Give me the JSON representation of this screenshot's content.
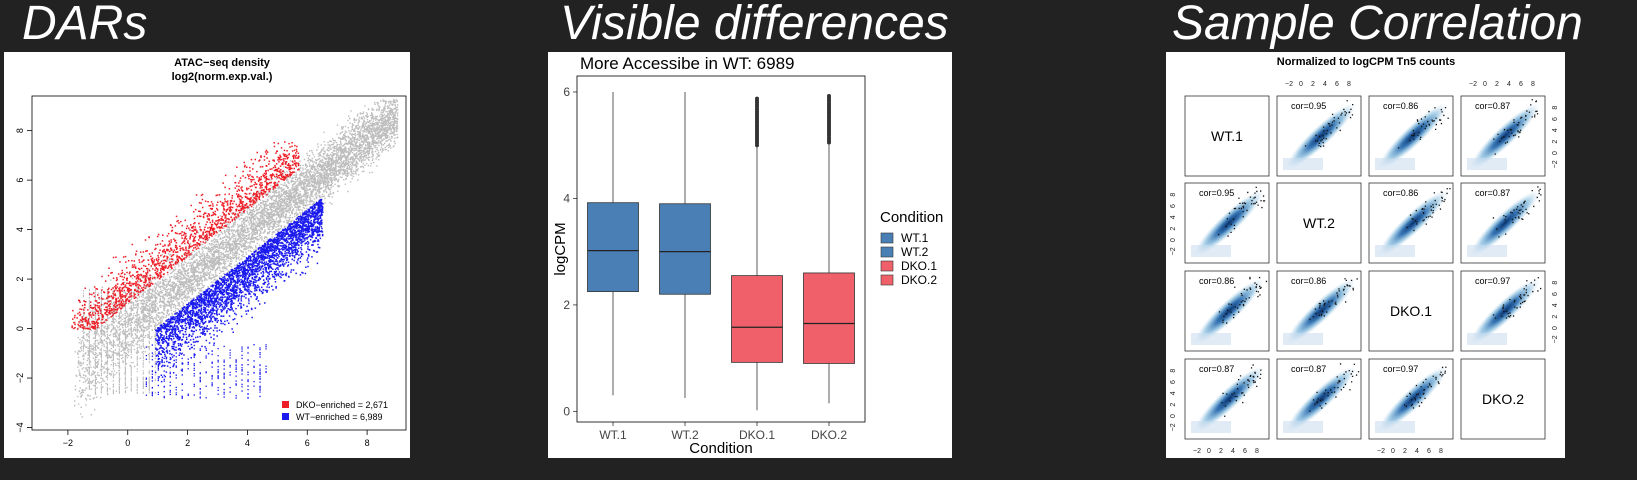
{
  "headings": {
    "left": "DARs",
    "middle": "Visible differences",
    "right": "Sample Correlation"
  },
  "colors": {
    "background": "#222222",
    "dko_enriched": "#ee1c25",
    "wt_enriched": "#1a1aee",
    "neutral": "#bdbdbd",
    "wt_box": "#4a7fb5",
    "dko_box": "#f0606a",
    "corr_blue": "#2166ac"
  },
  "chart_data": [
    {
      "type": "scatter",
      "title": "ATAC−seq density",
      "subtitle": "log2(norm.exp.val.)",
      "xlabel": "",
      "ylabel": "",
      "xlim": [
        -3.2,
        9.3
      ],
      "ylim": [
        -4.1,
        9.4
      ],
      "xticks": [
        "−2",
        "0",
        "2",
        "4",
        "6",
        "8"
      ],
      "yticks": [
        "−4",
        "−2",
        "0",
        "2",
        "4",
        "6",
        "8"
      ],
      "legend_position": "bottom-right",
      "series": [
        {
          "name": "DKO−enriched = 2,671",
          "color": "#ee1c25"
        },
        {
          "name": "WT−enriched = 6,989",
          "color": "#1a1aee"
        }
      ]
    },
    {
      "type": "box",
      "title": "More Accessibe in WT: 6989",
      "xlabel": "Condition",
      "ylabel": "logCPM",
      "ylim": [
        -0.2,
        6.3
      ],
      "yticks": [
        "0",
        "2",
        "4",
        "6"
      ],
      "categories": [
        "WT.1",
        "WT.2",
        "DKO.1",
        "DKO.2"
      ],
      "boxes": [
        {
          "name": "WT.1",
          "min": 0.3,
          "q1": 2.25,
          "median": 3.02,
          "q3": 3.92,
          "max": 6.0,
          "color": "#4a7fb5"
        },
        {
          "name": "WT.2",
          "min": 0.25,
          "q1": 2.2,
          "median": 3.0,
          "q3": 3.9,
          "max": 6.0,
          "color": "#4a7fb5"
        },
        {
          "name": "DKO.1",
          "min": 0.02,
          "q1": 0.92,
          "median": 1.58,
          "q3": 2.55,
          "max": 5.0,
          "outlier_top": 5.9,
          "color": "#f0606a"
        },
        {
          "name": "DKO.2",
          "min": 0.15,
          "q1": 0.9,
          "median": 1.65,
          "q3": 2.6,
          "max": 5.05,
          "outlier_top": 5.95,
          "color": "#f0606a"
        }
      ],
      "legend_title": "Condition",
      "legend_position": "right"
    },
    {
      "type": "scatter-matrix",
      "title": "Normalized to logCPM Tn5 counts",
      "variables": [
        "WT.1",
        "WT.2",
        "DKO.1",
        "DKO.2"
      ],
      "correlations": [
        {
          "row": 0,
          "col": 1,
          "label": "cor=0.95"
        },
        {
          "row": 0,
          "col": 2,
          "label": "cor=0.86"
        },
        {
          "row": 0,
          "col": 3,
          "label": "cor=0.87"
        },
        {
          "row": 1,
          "col": 0,
          "label": "cor=0.95"
        },
        {
          "row": 1,
          "col": 2,
          "label": "cor=0.86"
        },
        {
          "row": 1,
          "col": 3,
          "label": "cor=0.87"
        },
        {
          "row": 2,
          "col": 0,
          "label": "cor=0.86"
        },
        {
          "row": 2,
          "col": 1,
          "label": "cor=0.86"
        },
        {
          "row": 2,
          "col": 3,
          "label": "cor=0.97"
        },
        {
          "row": 3,
          "col": 0,
          "label": "cor=0.87"
        },
        {
          "row": 3,
          "col": 1,
          "label": "cor=0.87"
        },
        {
          "row": 3,
          "col": 2,
          "label": "cor=0.97"
        }
      ],
      "ticks": [
        "−2",
        "0",
        "2",
        "4",
        "6",
        "8"
      ],
      "tick_values": [
        -2,
        0,
        2,
        4,
        6,
        8
      ],
      "axis_range": [
        -3,
        9
      ]
    }
  ]
}
